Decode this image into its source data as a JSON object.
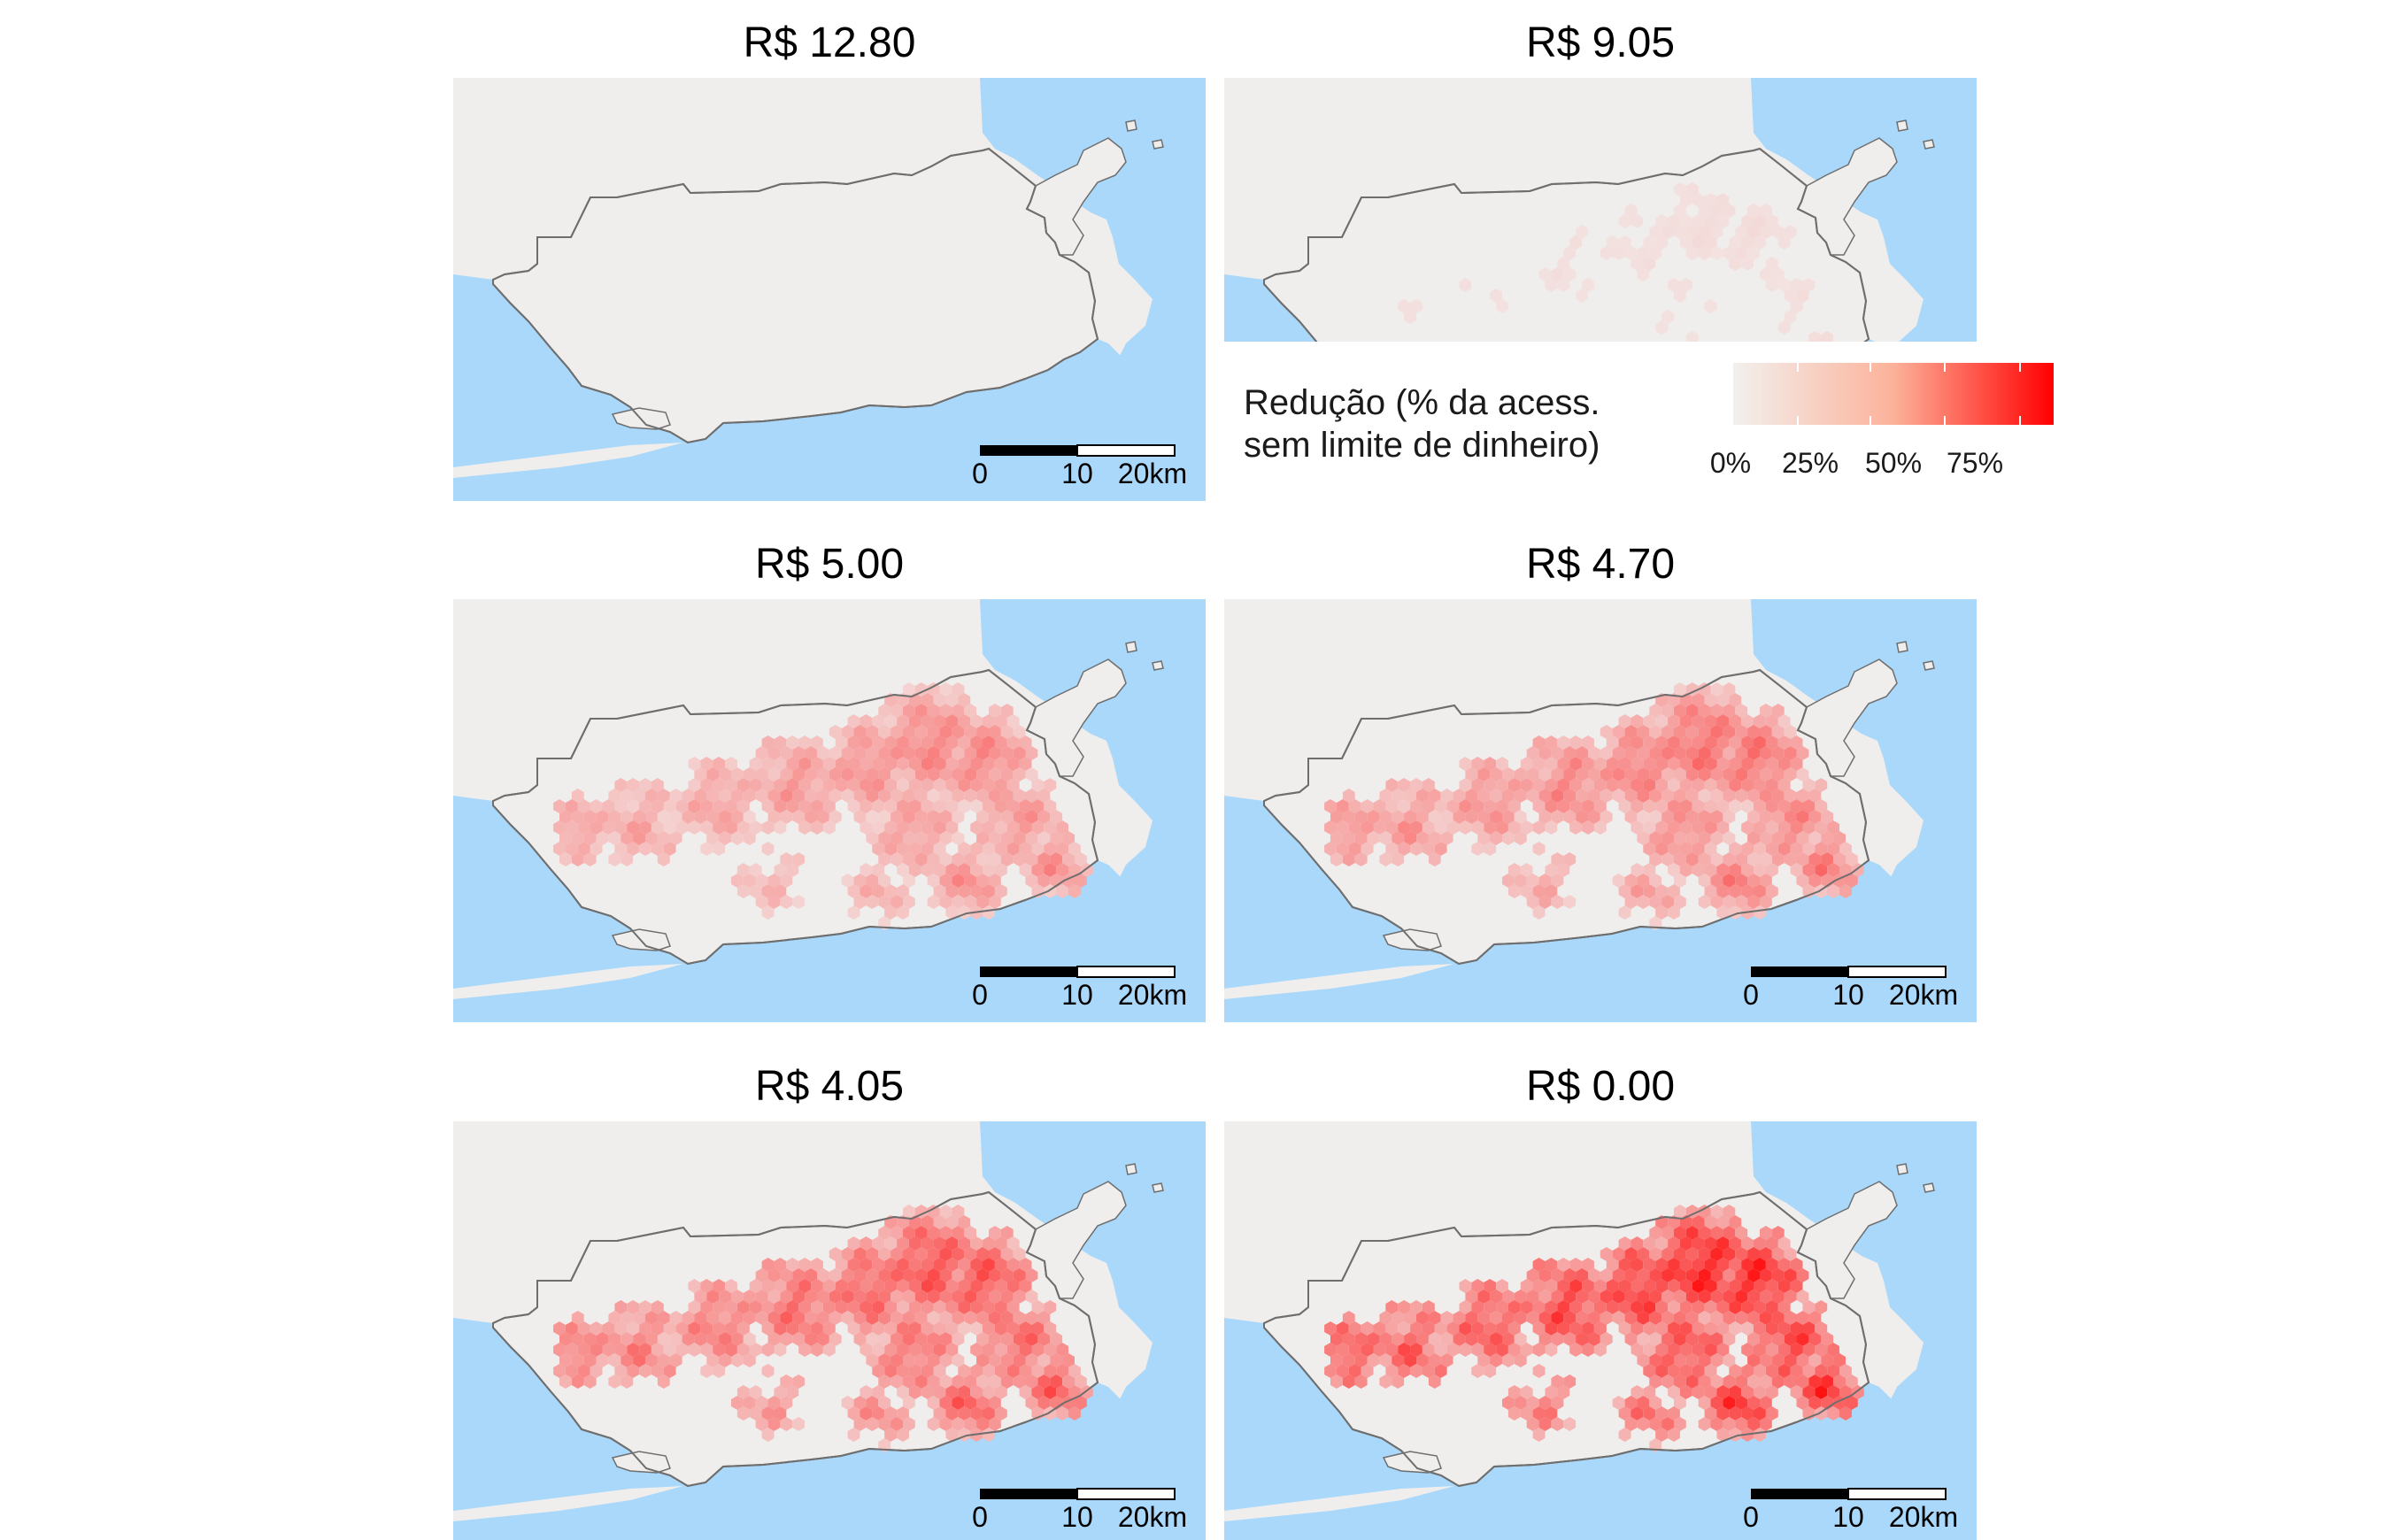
{
  "figure": {
    "panels": [
      {
        "title": "R$ 12.80",
        "intensity": 0.0
      },
      {
        "title": "R$ 9.05",
        "intensity": 0.08
      },
      {
        "title": "R$ 5.00",
        "intensity": 0.42
      },
      {
        "title": "R$ 4.70",
        "intensity": 0.5
      },
      {
        "title": "R$ 4.05",
        "intensity": 0.62
      },
      {
        "title": "R$ 0.00",
        "intensity": 0.8
      }
    ],
    "scale_bar": {
      "labels": [
        "0",
        "10",
        "20km"
      ]
    },
    "legend": {
      "title_line1": "Redução (% da acess.",
      "title_line2": "sem limite de dinheiro)",
      "ticks": [
        "0%",
        "25%",
        "50%",
        "75%"
      ],
      "color_low": "#f2f0ee",
      "color_high": "#ff0000"
    },
    "colors": {
      "water": "#a9d8fb",
      "land": "#efeeec",
      "boundary": "#6e6e6e"
    }
  }
}
